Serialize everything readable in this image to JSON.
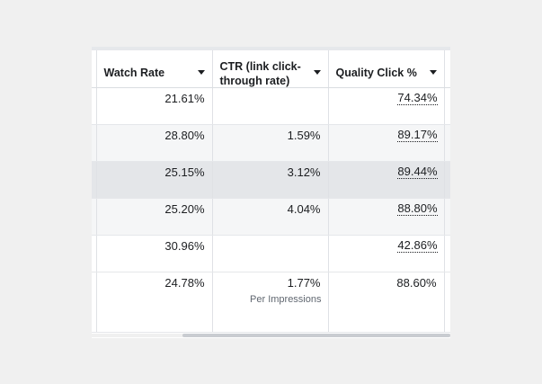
{
  "columns": [
    {
      "label": "Watch Rate"
    },
    {
      "label": "CTR (link click-through rate)"
    },
    {
      "label": "Quality Click %"
    }
  ],
  "rows": [
    {
      "watch_rate": "21.61%",
      "ctr": "",
      "ctr_sub": "",
      "quality_click": "74.34%"
    },
    {
      "watch_rate": "28.80%",
      "ctr": "1.59%",
      "ctr_sub": "",
      "quality_click": "89.17%"
    },
    {
      "watch_rate": "25.15%",
      "ctr": "3.12%",
      "ctr_sub": "",
      "quality_click": "89.44%"
    },
    {
      "watch_rate": "25.20%",
      "ctr": "4.04%",
      "ctr_sub": "",
      "quality_click": "88.80%"
    },
    {
      "watch_rate": "30.96%",
      "ctr": "",
      "ctr_sub": "",
      "quality_click": "42.86%"
    },
    {
      "watch_rate": "24.78%",
      "ctr": "1.77%",
      "ctr_sub": "Per Impressions",
      "quality_click": "88.60%"
    }
  ],
  "icons": {
    "sort": "caret-down-icon"
  },
  "colors": {
    "background": "#f0f0f0",
    "row_alt": "#f5f6f7",
    "row_hover": "#e4e6e9",
    "text": "#1c1e21",
    "subtext": "#606770"
  }
}
